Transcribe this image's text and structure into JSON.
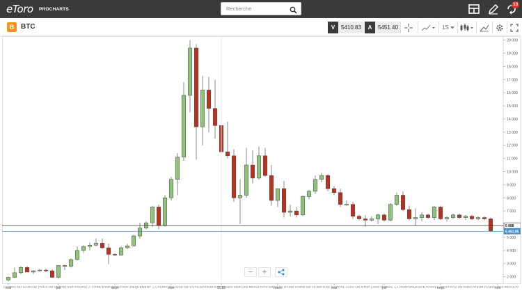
{
  "topbar": {
    "logo": "eToro",
    "logo_sub": "PROCHARTS",
    "search_placeholder": "Recherche",
    "notification_count": "13"
  },
  "symbol": {
    "name": "BTC",
    "icon_glyph": "B",
    "sell_label": "V",
    "sell_price": "5410.83",
    "buy_label": "A",
    "buy_price": "5451.40",
    "interval": "1S"
  },
  "chart_data": {
    "type": "candlestick",
    "y_ticks": [
      "20 000",
      "19 000",
      "18 000",
      "17 000",
      "16 000",
      "15 000",
      "14 000",
      "13 000",
      "12 000",
      "11 000",
      "10 000",
      "9 000",
      "8 000",
      "7 000",
      "6 000",
      "5 000",
      "4 000",
      "3 000",
      "2 000"
    ],
    "x_ticks": [
      "mai",
      "juil",
      "sept",
      "nov",
      "2018",
      "mars",
      "mai",
      "juil",
      "sept",
      "nov"
    ],
    "ylim": [
      1500,
      20300
    ],
    "price_lines": [
      {
        "label": "5 888",
        "value": 5888,
        "color": "#333333"
      },
      {
        "label": "5 451,95",
        "value": 5452,
        "color": "#4a90c7"
      }
    ],
    "candles": [
      {
        "o": 1750,
        "h": 2000,
        "l": 1650,
        "c": 1950
      },
      {
        "o": 1950,
        "h": 2700,
        "l": 1900,
        "c": 2300
      },
      {
        "o": 2300,
        "h": 2800,
        "l": 2200,
        "c": 2700
      },
      {
        "o": 2700,
        "h": 2800,
        "l": 2350,
        "c": 2350
      },
      {
        "o": 2350,
        "h": 2500,
        "l": 2200,
        "c": 2450
      },
      {
        "o": 2450,
        "h": 2600,
        "l": 2400,
        "c": 2500
      },
      {
        "o": 2500,
        "h": 2600,
        "l": 2350,
        "c": 2450
      },
      {
        "o": 2450,
        "h": 2550,
        "l": 1900,
        "c": 1950
      },
      {
        "o": 1950,
        "h": 2900,
        "l": 1850,
        "c": 2850
      },
      {
        "o": 2850,
        "h": 2900,
        "l": 2500,
        "c": 2800
      },
      {
        "o": 2800,
        "h": 3400,
        "l": 2700,
        "c": 3300
      },
      {
        "o": 3300,
        "h": 4300,
        "l": 3250,
        "c": 4000
      },
      {
        "o": 4000,
        "h": 4400,
        "l": 3800,
        "c": 4300
      },
      {
        "o": 4300,
        "h": 4600,
        "l": 4000,
        "c": 4400
      },
      {
        "o": 4400,
        "h": 4900,
        "l": 4300,
        "c": 4550
      },
      {
        "o": 4550,
        "h": 4900,
        "l": 4100,
        "c": 4200
      },
      {
        "o": 4200,
        "h": 4500,
        "l": 2950,
        "c": 3700
      },
      {
        "o": 3700,
        "h": 3800,
        "l": 3550,
        "c": 3650
      },
      {
        "o": 3650,
        "h": 4300,
        "l": 3600,
        "c": 4200
      },
      {
        "o": 4200,
        "h": 4500,
        "l": 4100,
        "c": 4350
      },
      {
        "o": 4350,
        "h": 5200,
        "l": 4300,
        "c": 5100
      },
      {
        "o": 5100,
        "h": 6100,
        "l": 4900,
        "c": 5700
      },
      {
        "o": 5700,
        "h": 6200,
        "l": 5600,
        "c": 6100
      },
      {
        "o": 6100,
        "h": 7400,
        "l": 5800,
        "c": 7300
      },
      {
        "o": 7300,
        "h": 7500,
        "l": 5600,
        "c": 5900
      },
      {
        "o": 5900,
        "h": 8200,
        "l": 5800,
        "c": 8000
      },
      {
        "o": 8000,
        "h": 9600,
        "l": 7800,
        "c": 9400
      },
      {
        "o": 9400,
        "h": 11400,
        "l": 8200,
        "c": 11100
      },
      {
        "o": 11100,
        "h": 16800,
        "l": 10800,
        "c": 15800
      },
      {
        "o": 15800,
        "h": 20000,
        "l": 14500,
        "c": 19400
      },
      {
        "o": 19400,
        "h": 19700,
        "l": 10900,
        "c": 13400
      },
      {
        "o": 13400,
        "h": 17300,
        "l": 12000,
        "c": 16200
      },
      {
        "o": 16200,
        "h": 17200,
        "l": 13000,
        "c": 14800
      },
      {
        "o": 14800,
        "h": 17000,
        "l": 12500,
        "c": 13500
      },
      {
        "o": 13500,
        "h": 14200,
        "l": 9400,
        "c": 11500
      },
      {
        "o": 11500,
        "h": 13800,
        "l": 11000,
        "c": 11200
      },
      {
        "o": 11200,
        "h": 11700,
        "l": 7700,
        "c": 8000
      },
      {
        "o": 8000,
        "h": 9400,
        "l": 6000,
        "c": 8200
      },
      {
        "o": 8200,
        "h": 11800,
        "l": 8000,
        "c": 10500
      },
      {
        "o": 10500,
        "h": 11600,
        "l": 9100,
        "c": 9500
      },
      {
        "o": 9500,
        "h": 11900,
        "l": 9400,
        "c": 11200
      },
      {
        "o": 11200,
        "h": 11800,
        "l": 9600,
        "c": 9700
      },
      {
        "o": 9700,
        "h": 10500,
        "l": 7400,
        "c": 7800
      },
      {
        "o": 7800,
        "h": 8600,
        "l": 7300,
        "c": 8700
      },
      {
        "o": 8700,
        "h": 9300,
        "l": 6500,
        "c": 6900
      },
      {
        "o": 6900,
        "h": 7500,
        "l": 6600,
        "c": 7000
      },
      {
        "o": 7000,
        "h": 7300,
        "l": 6500,
        "c": 6700
      },
      {
        "o": 6700,
        "h": 8200,
        "l": 6600,
        "c": 8100
      },
      {
        "o": 8100,
        "h": 8600,
        "l": 7900,
        "c": 8500
      },
      {
        "o": 8500,
        "h": 9700,
        "l": 8300,
        "c": 9400
      },
      {
        "o": 9400,
        "h": 9900,
        "l": 9200,
        "c": 9700
      },
      {
        "o": 9700,
        "h": 9800,
        "l": 8500,
        "c": 8700
      },
      {
        "o": 8700,
        "h": 8900,
        "l": 8200,
        "c": 8400
      },
      {
        "o": 8400,
        "h": 8700,
        "l": 7300,
        "c": 7500
      },
      {
        "o": 7500,
        "h": 7800,
        "l": 7400,
        "c": 7500
      },
      {
        "o": 7500,
        "h": 7700,
        "l": 6400,
        "c": 6600
      },
      {
        "o": 6600,
        "h": 6700,
        "l": 6300,
        "c": 6400
      },
      {
        "o": 6400,
        "h": 6700,
        "l": 5800,
        "c": 6300
      },
      {
        "o": 6300,
        "h": 6600,
        "l": 6200,
        "c": 6400
      },
      {
        "o": 6400,
        "h": 6800,
        "l": 6000,
        "c": 6700
      },
      {
        "o": 6700,
        "h": 6800,
        "l": 6200,
        "c": 6300
      },
      {
        "o": 6300,
        "h": 7600,
        "l": 6200,
        "c": 7500
      },
      {
        "o": 7500,
        "h": 8400,
        "l": 7400,
        "c": 8200
      },
      {
        "o": 8200,
        "h": 8500,
        "l": 7000,
        "c": 7100
      },
      {
        "o": 7100,
        "h": 7400,
        "l": 6300,
        "c": 6400
      },
      {
        "o": 6400,
        "h": 7200,
        "l": 5900,
        "c": 6500
      },
      {
        "o": 6500,
        "h": 6900,
        "l": 6200,
        "c": 6700
      },
      {
        "o": 6700,
        "h": 6800,
        "l": 6400,
        "c": 6500
      },
      {
        "o": 6500,
        "h": 7400,
        "l": 6300,
        "c": 7300
      },
      {
        "o": 7300,
        "h": 7400,
        "l": 6300,
        "c": 6400
      },
      {
        "o": 6400,
        "h": 6600,
        "l": 6200,
        "c": 6500
      },
      {
        "o": 6500,
        "h": 6800,
        "l": 6400,
        "c": 6700
      },
      {
        "o": 6700,
        "h": 6800,
        "l": 6400,
        "c": 6500
      },
      {
        "o": 6500,
        "h": 6700,
        "l": 6300,
        "c": 6600
      },
      {
        "o": 6600,
        "h": 6700,
        "l": 6300,
        "c": 6400
      },
      {
        "o": 6400,
        "h": 6600,
        "l": 6300,
        "c": 6500
      },
      {
        "o": 6500,
        "h": 6600,
        "l": 6300,
        "c": 6400
      },
      {
        "o": 6400,
        "h": 6500,
        "l": 5400,
        "c": 5452
      }
    ],
    "up_color": "#8fc27a",
    "down_color": "#b8321f"
  },
  "zoom": {
    "minus": "−",
    "plus": "+"
  },
  "disclaimer": "LE PRIX DU MARCHÉ (TAUX DE VENTE) EST FOURNI À TITRE D'INFORMATION UNIQUEMENT. LA PERFORMANCE DE L'UTILISATEUR EST BASÉE SUR LES RÉSULTATS SIMULÉS D'UNE COPIE DE 10 000 $ DE CAPITAL AVEC UN STOP LOSS DE 60%. LA PERFORMANCE PASSÉE N'EST PAS UN INDICATEUR FIABLE DES RÉSULTATS FUTURS."
}
